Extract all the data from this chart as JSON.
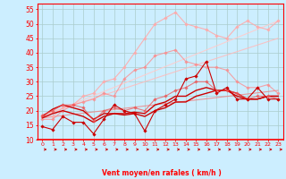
{
  "xlabel": "Vent moyen/en rafales ( km/h )",
  "bg_color": "#cceeff",
  "grid_color": "#aacccc",
  "axis_color": "#ff0000",
  "xlim": [
    -0.5,
    23.5
  ],
  "ylim": [
    10,
    57
  ],
  "yticks": [
    10,
    15,
    20,
    25,
    30,
    35,
    40,
    45,
    50,
    55
  ],
  "xticks": [
    0,
    1,
    2,
    3,
    4,
    5,
    6,
    7,
    8,
    9,
    10,
    11,
    12,
    13,
    14,
    15,
    16,
    17,
    18,
    19,
    20,
    21,
    22,
    23
  ],
  "lines": [
    {
      "x": [
        0,
        1,
        2,
        3,
        4,
        5,
        6,
        7,
        8,
        9,
        10,
        11,
        12,
        13,
        14,
        15,
        16,
        17,
        18,
        19,
        20,
        21,
        22,
        23
      ],
      "y": [
        14.5,
        13.5,
        18,
        16,
        16,
        12,
        17,
        22,
        20,
        19,
        13,
        20,
        22,
        24,
        31,
        32,
        37,
        26,
        28,
        24,
        24,
        28,
        24,
        24
      ],
      "color": "#cc0000",
      "lw": 0.8,
      "marker": "D",
      "ms": 1.8,
      "alpha": 1.0,
      "zorder": 5
    },
    {
      "x": [
        0,
        1,
        2,
        3,
        4,
        5,
        6,
        7,
        8,
        9,
        10,
        11,
        12,
        13,
        14,
        15,
        16,
        17,
        18,
        19,
        20,
        21,
        22,
        23
      ],
      "y": [
        17.5,
        19,
        20,
        19,
        18,
        16,
        18,
        19,
        18.5,
        19,
        18,
        20,
        21,
        23,
        23,
        25,
        26,
        27,
        27,
        25,
        24,
        24,
        25,
        25
      ],
      "color": "#cc0000",
      "lw": 1.0,
      "marker": null,
      "ms": 0,
      "alpha": 1.0,
      "zorder": 4
    },
    {
      "x": [
        0,
        1,
        2,
        3,
        4,
        5,
        6,
        7,
        8,
        9,
        10,
        11,
        12,
        13,
        14,
        15,
        16,
        17,
        18,
        19,
        20,
        21,
        22,
        23
      ],
      "y": [
        18,
        20.5,
        22,
        21,
        20,
        17,
        19,
        19,
        19,
        19.5,
        19,
        22,
        23,
        25,
        25,
        27,
        28,
        27,
        27,
        26,
        24,
        24,
        25,
        25
      ],
      "color": "#cc0000",
      "lw": 1.0,
      "marker": null,
      "ms": 0,
      "alpha": 1.0,
      "zorder": 4
    },
    {
      "x": [
        0,
        1,
        2,
        3,
        4,
        5,
        6,
        7,
        8,
        9,
        10,
        11,
        12,
        13,
        14,
        15,
        16,
        17,
        18,
        19,
        20,
        21,
        22,
        23
      ],
      "y": [
        18.5,
        20,
        22,
        22,
        21,
        16.5,
        20,
        21,
        20,
        21,
        20,
        24,
        25,
        27,
        28,
        30,
        30,
        27,
        27,
        26,
        24,
        25,
        25,
        24
      ],
      "color": "#ee5555",
      "lw": 0.8,
      "marker": "D",
      "ms": 1.8,
      "alpha": 0.75,
      "zorder": 4
    },
    {
      "x": [
        0,
        1,
        2,
        3,
        4,
        5,
        6,
        7,
        8,
        9,
        10,
        11,
        12,
        13,
        14,
        15,
        16,
        17,
        18,
        19,
        20,
        21,
        22,
        23
      ],
      "y": [
        18,
        18,
        21,
        22,
        25,
        26,
        30,
        31,
        35,
        40,
        45,
        50,
        52,
        54,
        50,
        49,
        48,
        46,
        45,
        49,
        51,
        49,
        48,
        51
      ],
      "color": "#ffaaaa",
      "lw": 0.8,
      "marker": "D",
      "ms": 1.8,
      "alpha": 0.9,
      "zorder": 3
    },
    {
      "x": [
        0,
        1,
        2,
        3,
        4,
        5,
        6,
        7,
        8,
        9,
        10,
        11,
        12,
        13,
        14,
        15,
        16,
        17,
        18,
        19,
        20,
        21,
        22,
        23
      ],
      "y": [
        17,
        17,
        20,
        22,
        23,
        24,
        26,
        25,
        31,
        34,
        35,
        39,
        40,
        41,
        37,
        36,
        35,
        35,
        34,
        30,
        28,
        28,
        29,
        26
      ],
      "color": "#ff8888",
      "lw": 0.8,
      "marker": "D",
      "ms": 1.8,
      "alpha": 0.75,
      "zorder": 3
    },
    {
      "x": [
        0,
        23
      ],
      "y": [
        17.5,
        27
      ],
      "color": "#ee8888",
      "lw": 0.8,
      "marker": null,
      "ms": 0,
      "alpha": 0.85,
      "zorder": 2
    },
    {
      "x": [
        0,
        23
      ],
      "y": [
        18,
        51
      ],
      "color": "#ffcccc",
      "lw": 0.8,
      "marker": null,
      "ms": 0,
      "alpha": 0.9,
      "zorder": 2
    },
    {
      "x": [
        0,
        23
      ],
      "y": [
        18.5,
        45
      ],
      "color": "#ffbbbb",
      "lw": 0.8,
      "marker": null,
      "ms": 0,
      "alpha": 0.85,
      "zorder": 2
    }
  ]
}
